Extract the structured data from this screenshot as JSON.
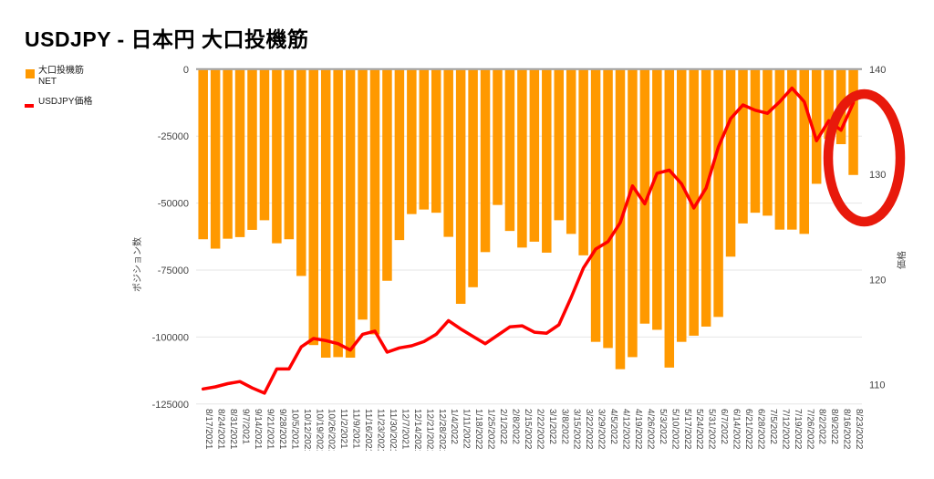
{
  "title": "USDJPY - 日本円 大口投機筋",
  "legend": {
    "net_label": "大口投機筋\nNET",
    "price_label": "USDJPY価格"
  },
  "axes": {
    "left_title": "ポジション数",
    "right_title": "価格",
    "left_ticks": [
      0,
      -25000,
      -50000,
      -75000,
      -100000,
      -125000
    ],
    "right_ticks": [
      140,
      130,
      120,
      110
    ]
  },
  "colors": {
    "bar": "#ff9900",
    "line": "#ff0000",
    "annotation_circle": "#e8190b",
    "gridline": "#e6e6e6",
    "zero_axis_line": "#9e9e9e",
    "tick_text": "#444444"
  },
  "annotation": {
    "shape": "ellipse-outline",
    "highlights": "8/23/2022",
    "color": "#e8190b"
  },
  "chart_data": {
    "type": "combo",
    "title": "USDJPY - 日本円 大口投機筋",
    "categories": [
      "8/17/2021",
      "8/24/2021",
      "8/31/2021",
      "9/7/2021",
      "9/14/2021",
      "9/21/2021",
      "9/28/2021",
      "10/5/2021",
      "10/12/2021",
      "10/19/2021",
      "10/26/2021",
      "11/2/2021",
      "11/9/2021",
      "11/16/2021",
      "11/23/2021",
      "11/30/2021",
      "12/7/2021",
      "12/14/2021",
      "12/21/2021",
      "12/28/2021",
      "1/4/2022",
      "1/11/2022",
      "1/18/2022",
      "1/25/2022",
      "2/1/2022",
      "2/8/2022",
      "2/15/2022",
      "2/22/2022",
      "3/1/2022",
      "3/8/2022",
      "3/15/2022",
      "3/22/2022",
      "3/29/2022",
      "4/5/2022",
      "4/12/2022",
      "4/19/2022",
      "4/26/2022",
      "5/3/2022",
      "5/10/2022",
      "5/17/2022",
      "5/24/2022",
      "5/31/2022",
      "6/7/2022",
      "6/14/2022",
      "6/21/2022",
      "6/28/2022",
      "7/5/2022",
      "7/12/2022",
      "7/19/2022",
      "7/26/2022",
      "8/2/2022",
      "8/9/2022",
      "8/16/2022",
      "8/23/2022"
    ],
    "series": [
      {
        "name": "大口投機筋 NET",
        "type": "bar",
        "axis": "left",
        "color": "#ff9900",
        "values": [
          -63500,
          -67000,
          -63300,
          -62700,
          -60000,
          -56400,
          -65000,
          -63500,
          -77200,
          -103000,
          -107700,
          -107500,
          -107700,
          -93500,
          -99000,
          -79000,
          -63800,
          -54100,
          -52400,
          -53600,
          -62600,
          -87600,
          -81400,
          -68300,
          -50700,
          -60400,
          -66600,
          -64400,
          -68500,
          -56400,
          -61500,
          -69500,
          -101800,
          -104100,
          -112000,
          -107500,
          -95000,
          -97300,
          -111400,
          -101800,
          -99500,
          -96100,
          -92500,
          -70000,
          -57600,
          -53600,
          -54700,
          -59900,
          -59900,
          -61500,
          -42800,
          -26000,
          -28000,
          -39500
        ]
      },
      {
        "name": "USDJPY価格",
        "type": "line",
        "axis": "right",
        "color": "#ff0000",
        "values": [
          109.6,
          109.8,
          110.1,
          110.3,
          109.7,
          109.2,
          111.5,
          111.5,
          113.6,
          114.4,
          114.2,
          113.9,
          113.3,
          114.8,
          115.1,
          113.1,
          113.5,
          113.7,
          114.1,
          114.8,
          116.1,
          115.3,
          114.6,
          113.9,
          114.7,
          115.5,
          115.6,
          115.0,
          114.9,
          115.7,
          118.3,
          121.1,
          122.9,
          123.6,
          125.4,
          128.9,
          127.2,
          130.1,
          130.4,
          129.1,
          126.8,
          128.7,
          132.6,
          135.3,
          136.6,
          136.1,
          135.8,
          136.9,
          138.2,
          136.9,
          133.2,
          135.1,
          134.2,
          136.8
        ]
      }
    ],
    "left_axis": {
      "title": "ポジション数",
      "range": [
        -125000,
        0
      ],
      "gridlines": true
    },
    "right_axis": {
      "title": "価格",
      "ticks": [
        140,
        130,
        120,
        110
      ],
      "top_value": 140
    }
  }
}
